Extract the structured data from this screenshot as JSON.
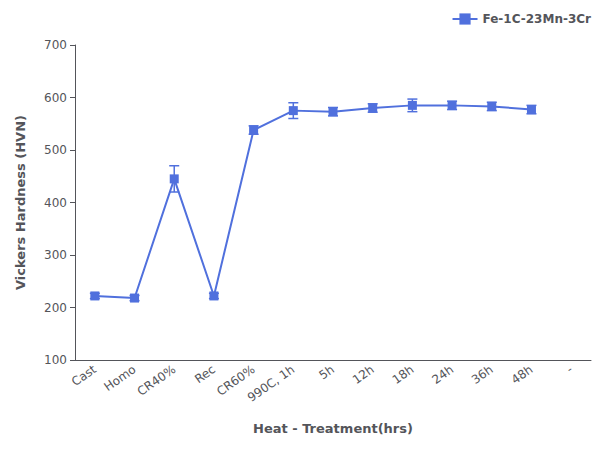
{
  "chart_data": {
    "type": "line",
    "categories": [
      "Cast",
      "Homo",
      "CR40%",
      "Rec",
      "CR60%",
      "990C, 1h",
      "5h",
      "12h",
      "18h",
      "24h",
      "36h",
      "48h",
      "-"
    ],
    "series": [
      {
        "name": "Fe-1C-23Mn-3Cr",
        "values": [
          222,
          218,
          445,
          222,
          538,
          575,
          573,
          580,
          585,
          585,
          583,
          577,
          null
        ],
        "errors": [
          5,
          5,
          25,
          5,
          8,
          15,
          8,
          8,
          12,
          8,
          8,
          8,
          null
        ],
        "marker": "square"
      }
    ],
    "xlabel": "Heat - Treatment(hrs)",
    "ylabel": "Vickers Hardness (HVN)",
    "ylim": [
      100,
      700
    ],
    "yticks": [
      100,
      200,
      300,
      400,
      500,
      600,
      700
    ],
    "grid": false,
    "legend": "upper right"
  }
}
